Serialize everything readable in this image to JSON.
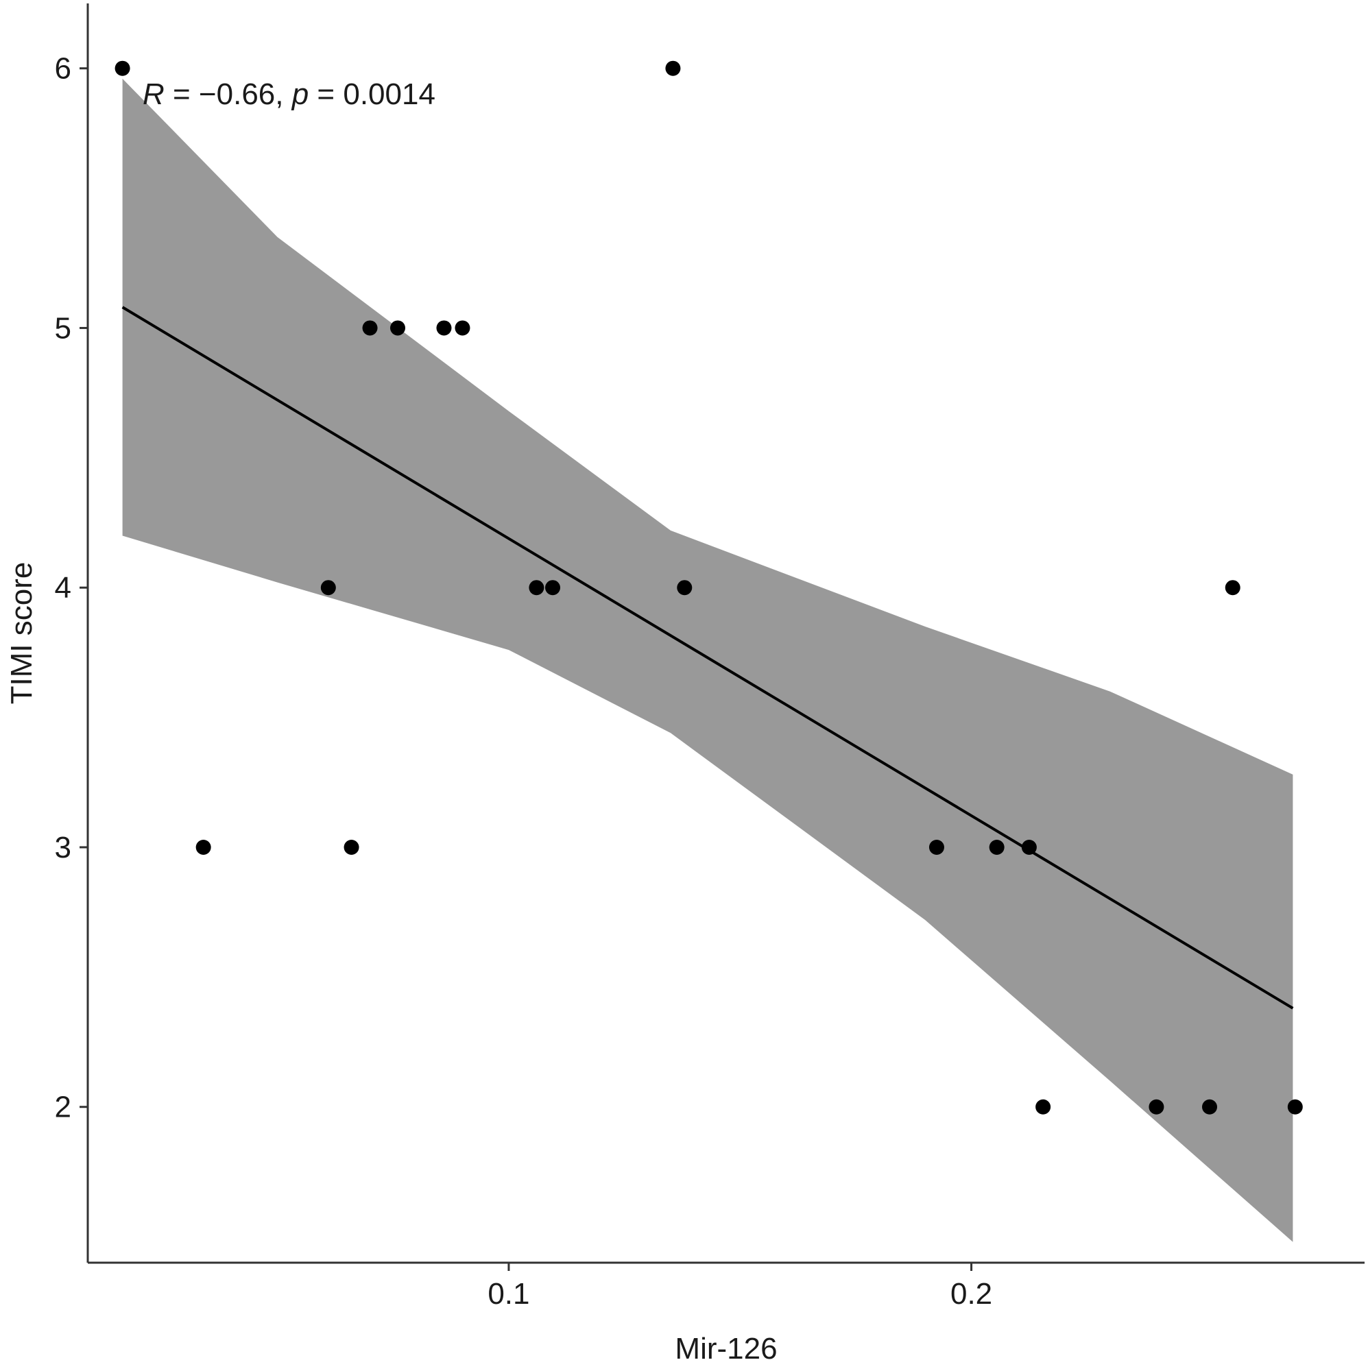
{
  "chart_data": {
    "type": "scatter",
    "title": "",
    "xlabel": "Mir-126",
    "ylabel": "TIMI score",
    "xlim": [
      0.009,
      0.285
    ],
    "ylim": [
      1.4,
      6.25
    ],
    "x_ticks": [
      0.1,
      0.2
    ],
    "x_tick_labels": [
      "0.1",
      "0.2"
    ],
    "y_ticks": [
      2,
      3,
      4,
      5,
      6
    ],
    "y_tick_labels": [
      "2",
      "3",
      "4",
      "5",
      "6"
    ],
    "grid": false,
    "legend": "none",
    "points": [
      {
        "x": 0.0165,
        "y": 6
      },
      {
        "x": 0.034,
        "y": 3
      },
      {
        "x": 0.061,
        "y": 4
      },
      {
        "x": 0.066,
        "y": 3
      },
      {
        "x": 0.07,
        "y": 5
      },
      {
        "x": 0.076,
        "y": 5
      },
      {
        "x": 0.086,
        "y": 5
      },
      {
        "x": 0.09,
        "y": 5
      },
      {
        "x": 0.106,
        "y": 4
      },
      {
        "x": 0.1095,
        "y": 4
      },
      {
        "x": 0.1355,
        "y": 6
      },
      {
        "x": 0.138,
        "y": 4
      },
      {
        "x": 0.1925,
        "y": 3
      },
      {
        "x": 0.2055,
        "y": 3
      },
      {
        "x": 0.2125,
        "y": 3
      },
      {
        "x": 0.2155,
        "y": 2
      },
      {
        "x": 0.24,
        "y": 2
      },
      {
        "x": 0.2515,
        "y": 2
      },
      {
        "x": 0.2565,
        "y": 4
      },
      {
        "x": 0.27,
        "y": 2
      }
    ],
    "regression": {
      "x_start": 0.0165,
      "x_end": 0.2695,
      "y_start": 5.08,
      "y_end": 2.38
    },
    "confidence_band": {
      "x": [
        0.0165,
        0.05,
        0.1,
        0.135,
        0.19,
        0.23,
        0.2695
      ],
      "upper": [
        5.96,
        5.35,
        4.68,
        4.22,
        3.85,
        3.6,
        3.28
      ],
      "lower": [
        4.2,
        4.02,
        3.76,
        3.44,
        2.72,
        2.1,
        1.48
      ]
    },
    "annotation": {
      "R_symbol": "R",
      "R_value": " = −0.66, ",
      "p_symbol": "p",
      "p_value": " = 0.0014"
    },
    "colors": {
      "points": "#000000",
      "line": "#000000",
      "band": "#999999",
      "axis": "#333333"
    }
  }
}
